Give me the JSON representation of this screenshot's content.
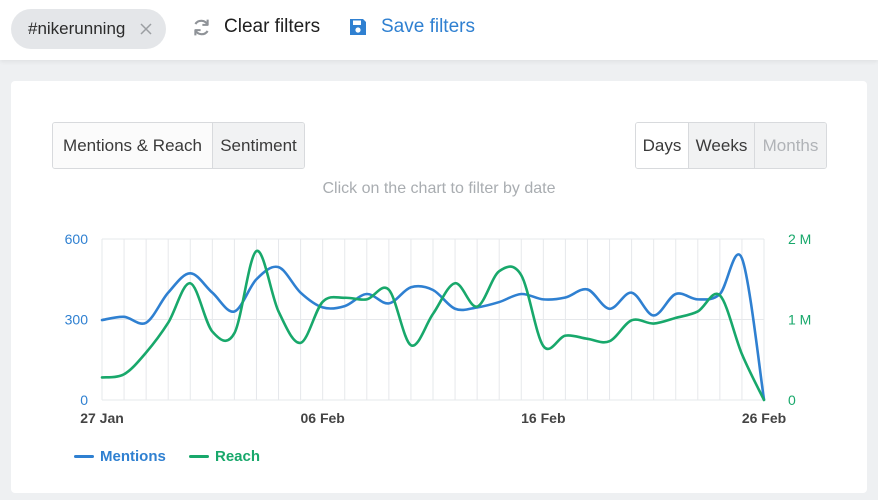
{
  "filters": {
    "chip_label": "#nikerunning",
    "clear_label": "Clear filters",
    "save_label": "Save filters"
  },
  "colors": {
    "mentions": "#2f80d1",
    "reach": "#18a86b",
    "save_accent": "#2f80d1"
  },
  "icons": {
    "chip_close": "close-icon",
    "clear": "refresh-icon",
    "save": "floppy-disk-icon"
  },
  "tabs": {
    "metrics": [
      "Mentions & Reach",
      "Sentiment"
    ],
    "periods": [
      "Days",
      "Weeks",
      "Months"
    ],
    "active_period": "Days"
  },
  "chart_hint": "Click on the chart to filter by date",
  "chart_data": {
    "type": "line",
    "x_tick_labels": [
      "27 Jan",
      "06 Feb",
      "16 Feb",
      "26 Feb"
    ],
    "x_tick_days": [
      0,
      10,
      20,
      30
    ],
    "left_axis": {
      "ticks": [
        "0",
        "300",
        "600"
      ],
      "ylim": [
        0,
        600
      ]
    },
    "right_axis": {
      "ticks": [
        "0",
        "1 M",
        "2 M"
      ],
      "ylim": [
        0,
        2000000
      ]
    },
    "grid": true,
    "legend_position": "bottom-left",
    "series": [
      {
        "name": "Mentions",
        "axis": "left",
        "x": [
          0,
          1,
          2,
          3,
          4,
          5,
          6,
          7,
          8,
          9,
          10,
          11,
          12,
          13,
          14,
          15,
          16,
          17,
          18,
          19,
          20,
          21,
          22,
          23,
          24,
          25,
          26,
          27,
          28,
          29,
          30
        ],
        "values": [
          298,
          310,
          288,
          400,
          472,
          400,
          330,
          450,
          495,
          400,
          345,
          350,
          395,
          360,
          420,
          410,
          340,
          345,
          365,
          395,
          375,
          382,
          412,
          340,
          400,
          315,
          395,
          375,
          395,
          528,
          2
        ]
      },
      {
        "name": "Reach",
        "axis": "right",
        "x": [
          0,
          1,
          2,
          3,
          4,
          5,
          6,
          7,
          8,
          9,
          10,
          11,
          12,
          13,
          14,
          15,
          16,
          17,
          18,
          19,
          20,
          21,
          22,
          23,
          24,
          25,
          26,
          27,
          28,
          29,
          30
        ],
        "values": [
          280000,
          320000,
          590000,
          960000,
          1450000,
          850000,
          830000,
          1850000,
          1100000,
          710000,
          1220000,
          1270000,
          1250000,
          1370000,
          680000,
          1070000,
          1450000,
          1160000,
          1600000,
          1550000,
          670000,
          800000,
          760000,
          730000,
          990000,
          950000,
          1020000,
          1100000,
          1300000,
          570000,
          0
        ]
      }
    ]
  },
  "legend": {
    "mentions": "Mentions",
    "reach": "Reach"
  }
}
